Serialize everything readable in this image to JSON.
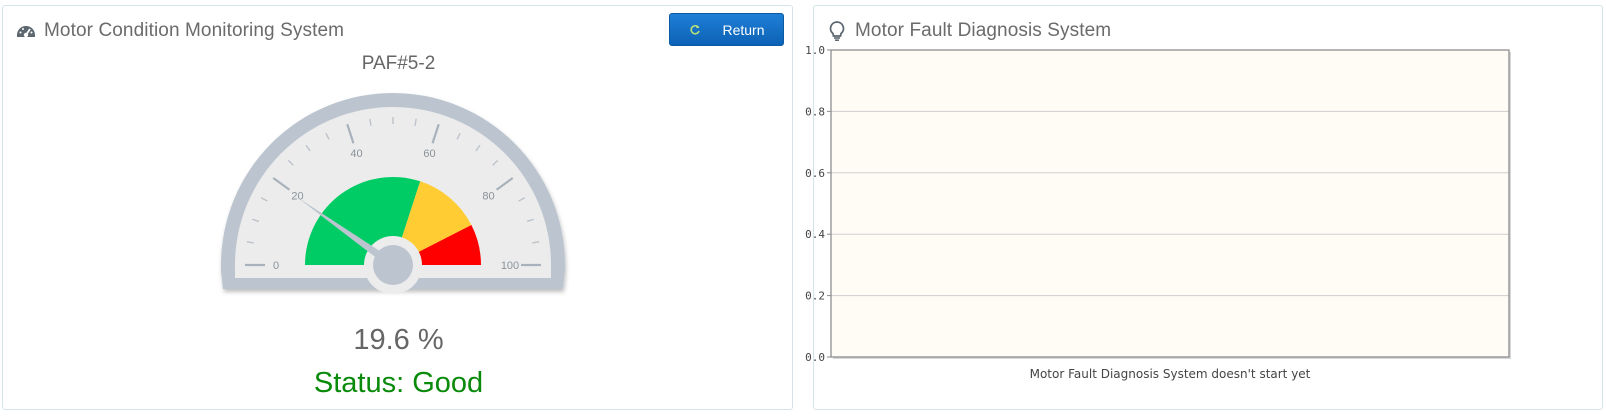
{
  "left_panel": {
    "title": "Motor Condition Monitoring System",
    "title_icon": "dashboard-icon",
    "return_button": {
      "label": "Return",
      "icon": "refresh-icon"
    },
    "motor_id": "PAF#5-2",
    "gauge": {
      "min": 0,
      "max": 100,
      "tick_labels": [
        "0",
        "20",
        "40",
        "60",
        "80",
        "100"
      ],
      "value": 19.6,
      "bands": [
        {
          "from": 0,
          "to": 60,
          "color": "#00cc66"
        },
        {
          "from": 60,
          "to": 85,
          "color": "#ffcc33"
        },
        {
          "from": 85,
          "to": 100,
          "color": "#ff0000"
        }
      ]
    },
    "value_text": "19.6 %",
    "status_text": "Status: Good",
    "status_color": "#0a8a0a"
  },
  "right_panel": {
    "title": "Motor Fault Diagnosis System",
    "title_icon": "lightbulb-icon",
    "chart_message": "Motor Fault Diagnosis System doesn't start yet"
  },
  "chart_data": {
    "type": "bar",
    "categories": [],
    "series": [],
    "ylim": [
      0,
      1
    ],
    "yticks": [
      "0.0",
      "0.2",
      "0.4",
      "0.6",
      "0.8",
      "1.0"
    ],
    "grid": true,
    "background": "#fffcf5"
  }
}
